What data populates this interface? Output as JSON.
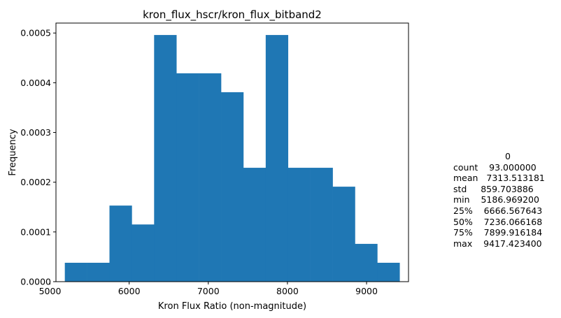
{
  "chart_data": {
    "type": "bar",
    "title": "kron_flux_hscr/kron_flux_bitband2",
    "xlabel": "Kron Flux Ratio (non-magnitude)",
    "ylabel": "Frequency",
    "xlim": [
      5075,
      9530
    ],
    "ylim": [
      0,
      0.00052
    ],
    "xticks": [
      5000,
      6000,
      7000,
      8000,
      9000
    ],
    "yticks": [
      "0.0000",
      "0.0001",
      "0.0002",
      "0.0003",
      "0.0004",
      "0.0005"
    ],
    "color": "#1f77b4",
    "bins": [
      {
        "x0": 5187.0,
        "x1": 5469.0,
        "value": 3.8e-05
      },
      {
        "x0": 5469.0,
        "x1": 5751.1,
        "value": 3.8e-05
      },
      {
        "x0": 5751.1,
        "x1": 6033.1,
        "value": 0.000153
      },
      {
        "x0": 6033.1,
        "x1": 6315.2,
        "value": 0.000115
      },
      {
        "x0": 6315.2,
        "x1": 6597.2,
        "value": 0.000496
      },
      {
        "x0": 6597.2,
        "x1": 6879.2,
        "value": 0.000419
      },
      {
        "x0": 6879.2,
        "x1": 7161.3,
        "value": 0.000419
      },
      {
        "x0": 7161.3,
        "x1": 7443.3,
        "value": 0.000381
      },
      {
        "x0": 7443.3,
        "x1": 7725.4,
        "value": 0.000229
      },
      {
        "x0": 7725.4,
        "x1": 8007.4,
        "value": 0.000496
      },
      {
        "x0": 8007.4,
        "x1": 8289.4,
        "value": 0.000229
      },
      {
        "x0": 8289.4,
        "x1": 8571.5,
        "value": 0.000229
      },
      {
        "x0": 8571.5,
        "x1": 8853.5,
        "value": 0.000191
      },
      {
        "x0": 8853.5,
        "x1": 9135.6,
        "value": 7.6e-05
      },
      {
        "x0": 9135.6,
        "x1": 9417.4,
        "value": 3.8e-05
      }
    ]
  },
  "stats": {
    "header": "0",
    "rows": [
      "count    93.000000",
      "mean   7313.513181",
      "std     859.703886",
      "min    5186.969200",
      "25%    6666.567643",
      "50%    7236.066168",
      "75%    7899.916184",
      "max    9417.423400"
    ]
  }
}
